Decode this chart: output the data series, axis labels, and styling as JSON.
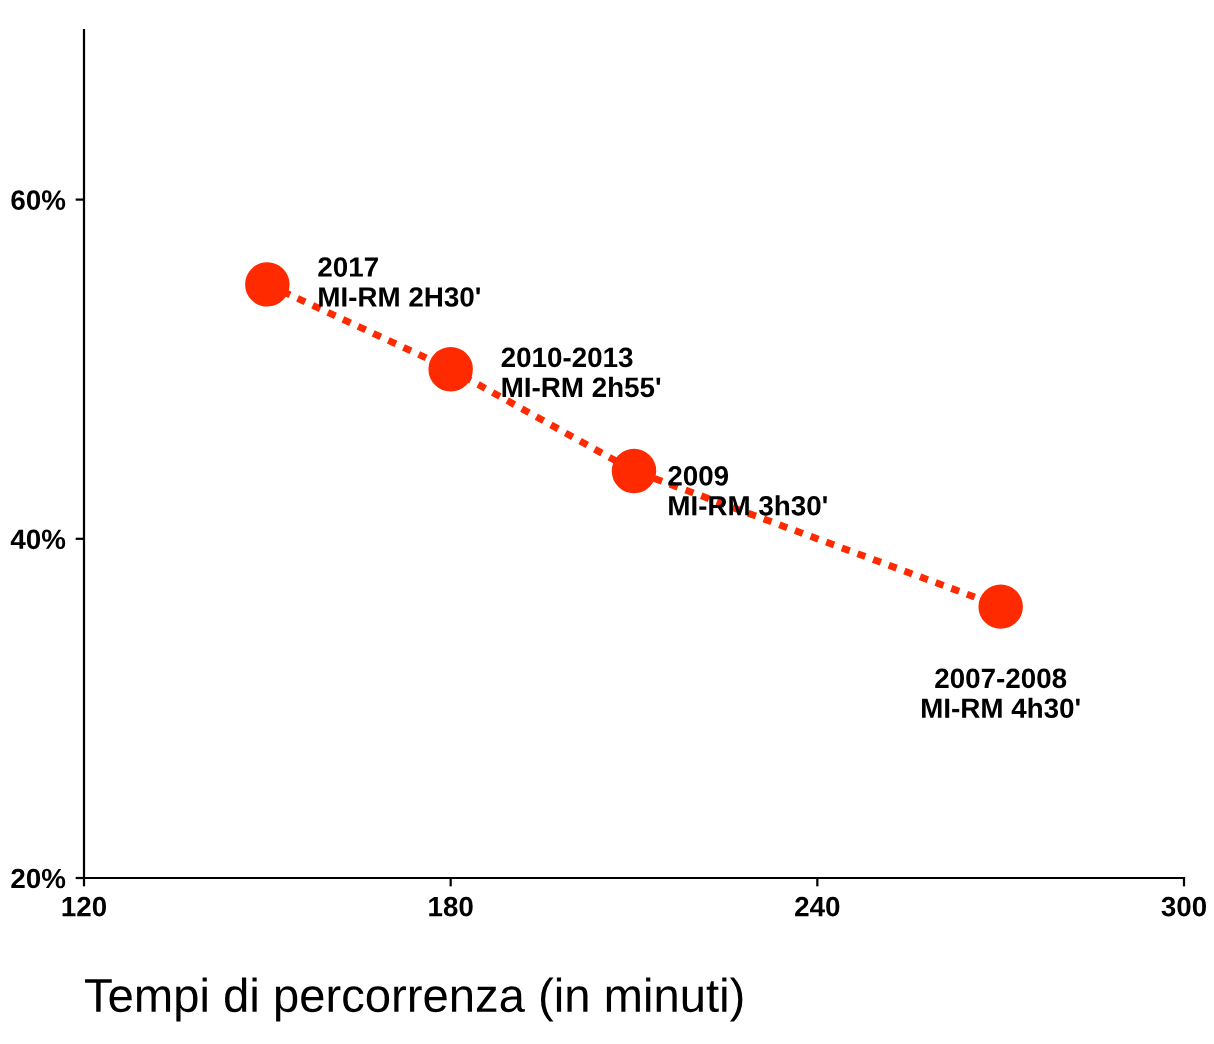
{
  "chart_data": {
    "type": "line",
    "xlabel": "Tempi di percorrenza (in minuti)",
    "x": [
      150,
      180,
      210,
      270
    ],
    "series": [
      {
        "color": "#ff2a00",
        "values": [
          55,
          50,
          44,
          36
        ]
      }
    ],
    "marker": "circle",
    "line_style": "dotted",
    "xlim": [
      120,
      300
    ],
    "xticks": [
      120,
      180,
      240,
      300
    ],
    "ylim": [
      20,
      70
    ],
    "yticks": [
      {
        "value": 20,
        "label": "20%"
      },
      {
        "value": 40,
        "label": "40%"
      },
      {
        "value": 60,
        "label": "60%"
      }
    ],
    "grid": false,
    "legend": false,
    "annotations": [
      {
        "text": "2017\nMI-RM 2H30'",
        "x": 150,
        "y": 55
      },
      {
        "text": "2010-2013\nMI-RM 2h55'",
        "x": 180,
        "y": 50
      },
      {
        "text": "2009\nMI-RM 3h30'",
        "x": 210,
        "y": 44
      },
      {
        "text": "2007-2008\nMI-RM 4h30'",
        "x": 270,
        "y": 36
      }
    ]
  }
}
